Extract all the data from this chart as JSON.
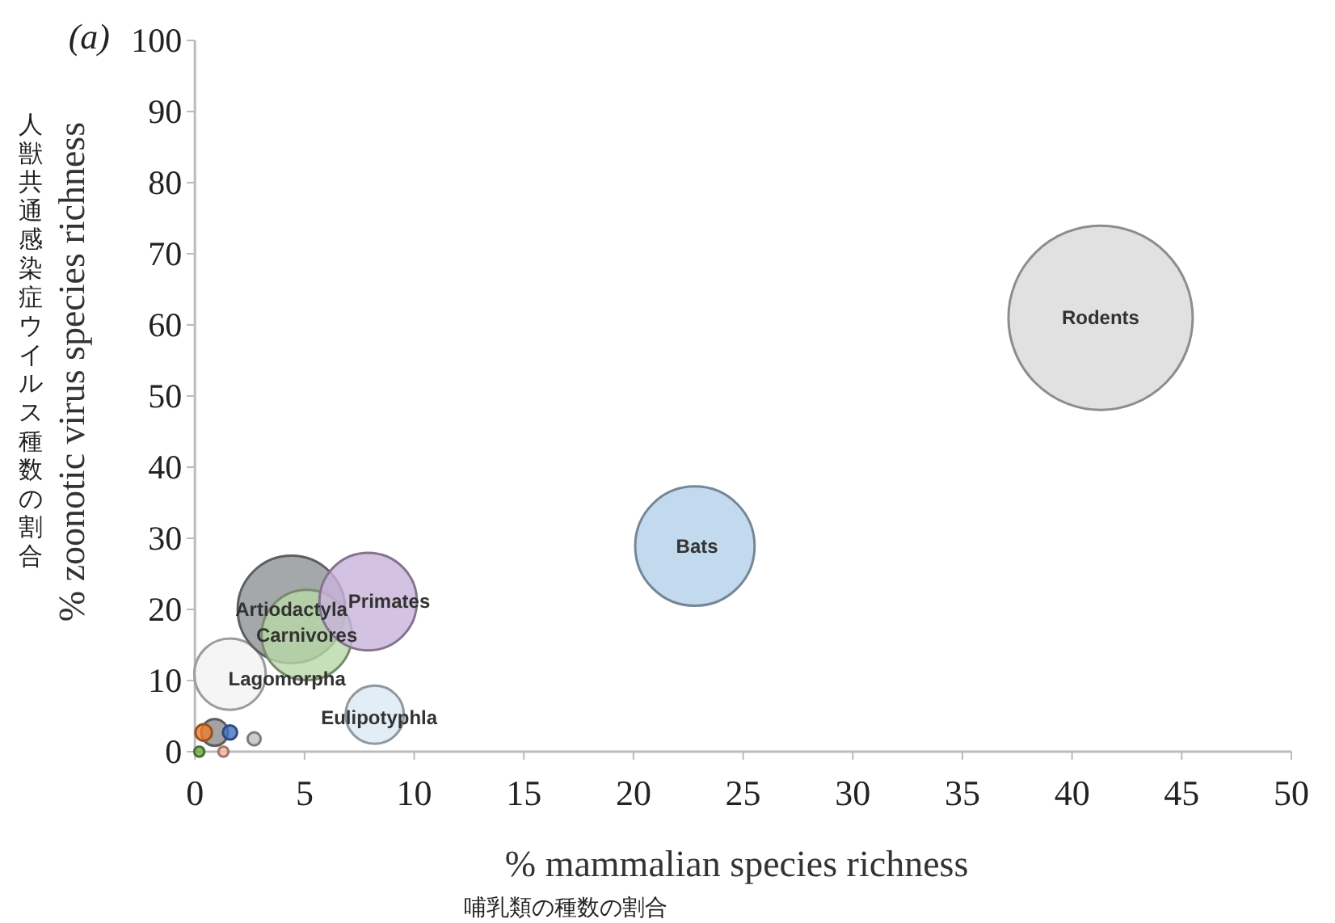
{
  "chart_data": {
    "type": "bubble",
    "title": "(a)",
    "xlabel": "% mammalian species richness",
    "ylabel": "% zoonotic virus species richness",
    "xlim": [
      0,
      50
    ],
    "xticks": [
      0,
      5,
      10,
      15,
      20,
      25,
      30,
      35,
      40,
      45,
      50
    ],
    "ylim": [
      0,
      100
    ],
    "yticks": [
      0,
      10,
      20,
      30,
      40,
      50,
      60,
      70,
      80,
      90,
      100
    ],
    "grid": false,
    "series": [
      {
        "x": [
          41.3,
          22.8,
          1.6,
          4.4,
          5.1,
          7.9,
          8.2,
          0.9,
          1.6,
          0.4,
          2.7,
          0.2,
          1.3
        ],
        "values": [
          61,
          28.9,
          10.9,
          20,
          16.4,
          21.1,
          5.2,
          2.7,
          2.7,
          2.7,
          1.8,
          0,
          0
        ],
        "sizes": [
          1,
          0.42,
          0.15,
          0.34,
          0.24,
          0.28,
          0.1,
          0.021,
          0.006,
          0.008,
          0.005,
          0.003,
          0.003
        ],
        "colors": [
          "#d9d9db",
          "#b4cfe8",
          "#f2f2f2",
          "#8f9296",
          "#b8d8a8",
          "#c9b3dc",
          "#dce8f4",
          "#8c8c8c",
          "#4472c4",
          "#ed7d31",
          "#bfbfbf",
          "#70ad47",
          "#f4b6a0"
        ]
      }
    ],
    "annotations": [
      "人獣共通感染症ウイルス種数の割合",
      "哺乳類の種数の割合",
      {
        "text": "Rodents",
        "x": 41.3,
        "y": 61
      },
      {
        "text": "Bats",
        "x": 22.9,
        "y": 28.9
      },
      {
        "text": "Artiodactyla",
        "x": 4.4,
        "y": 20
      },
      {
        "text": "Primates",
        "x": 7.9,
        "y": 21.1
      },
      {
        "text": "Carnivores",
        "x": 5.1,
        "y": 16.4
      },
      {
        "text": "Lagomorpha",
        "x": 4.2,
        "y": 10.2
      },
      {
        "text": "Eulipotyphla",
        "x": 8.4,
        "y": 4.8
      }
    ]
  }
}
